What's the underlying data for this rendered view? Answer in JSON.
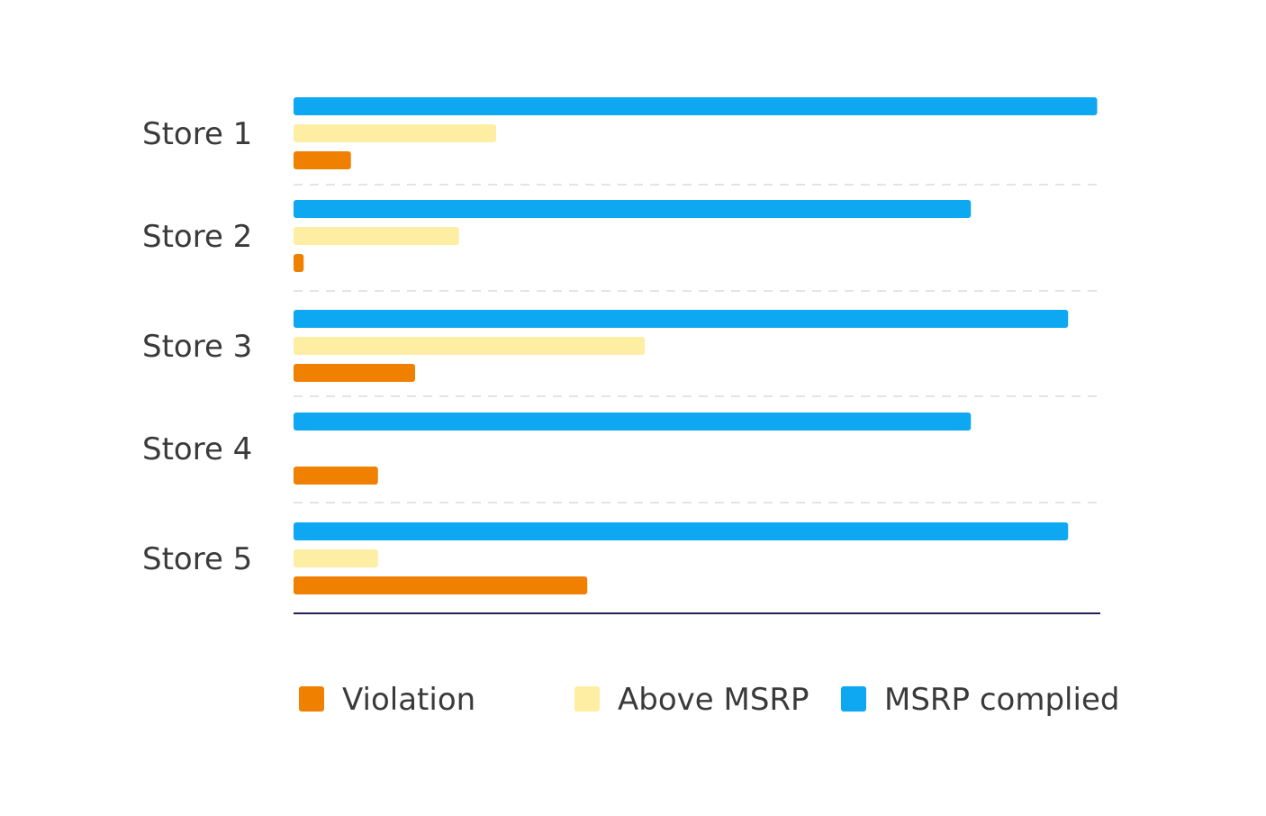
{
  "chart_data": {
    "type": "bar",
    "orientation": "horizontal",
    "categories": [
      "Store 1",
      "Store 2",
      "Store 3",
      "Store 4",
      "Store 5"
    ],
    "series": [
      {
        "name": "MSRP complied",
        "color": "#0ea7f1",
        "values": [
          1190,
          1003,
          1147,
          1003,
          1147
        ]
      },
      {
        "name": "Above MSRP",
        "color": "#fdeea3",
        "values": [
          300,
          245,
          520,
          0,
          125
        ]
      },
      {
        "name": "Violation",
        "color": "#f08100",
        "values": [
          85,
          15,
          180,
          125,
          435
        ]
      }
    ],
    "legend": {
      "placement": "bottom",
      "items": [
        {
          "label": "Violation",
          "color": "#f08100"
        },
        {
          "label": "Above MSRP",
          "color": "#fdeea3"
        },
        {
          "label": "MSRP complied",
          "color": "#0ea7f1"
        }
      ]
    },
    "xlim": [
      0,
      1200
    ],
    "grid": false,
    "category_separators": "dashed"
  }
}
